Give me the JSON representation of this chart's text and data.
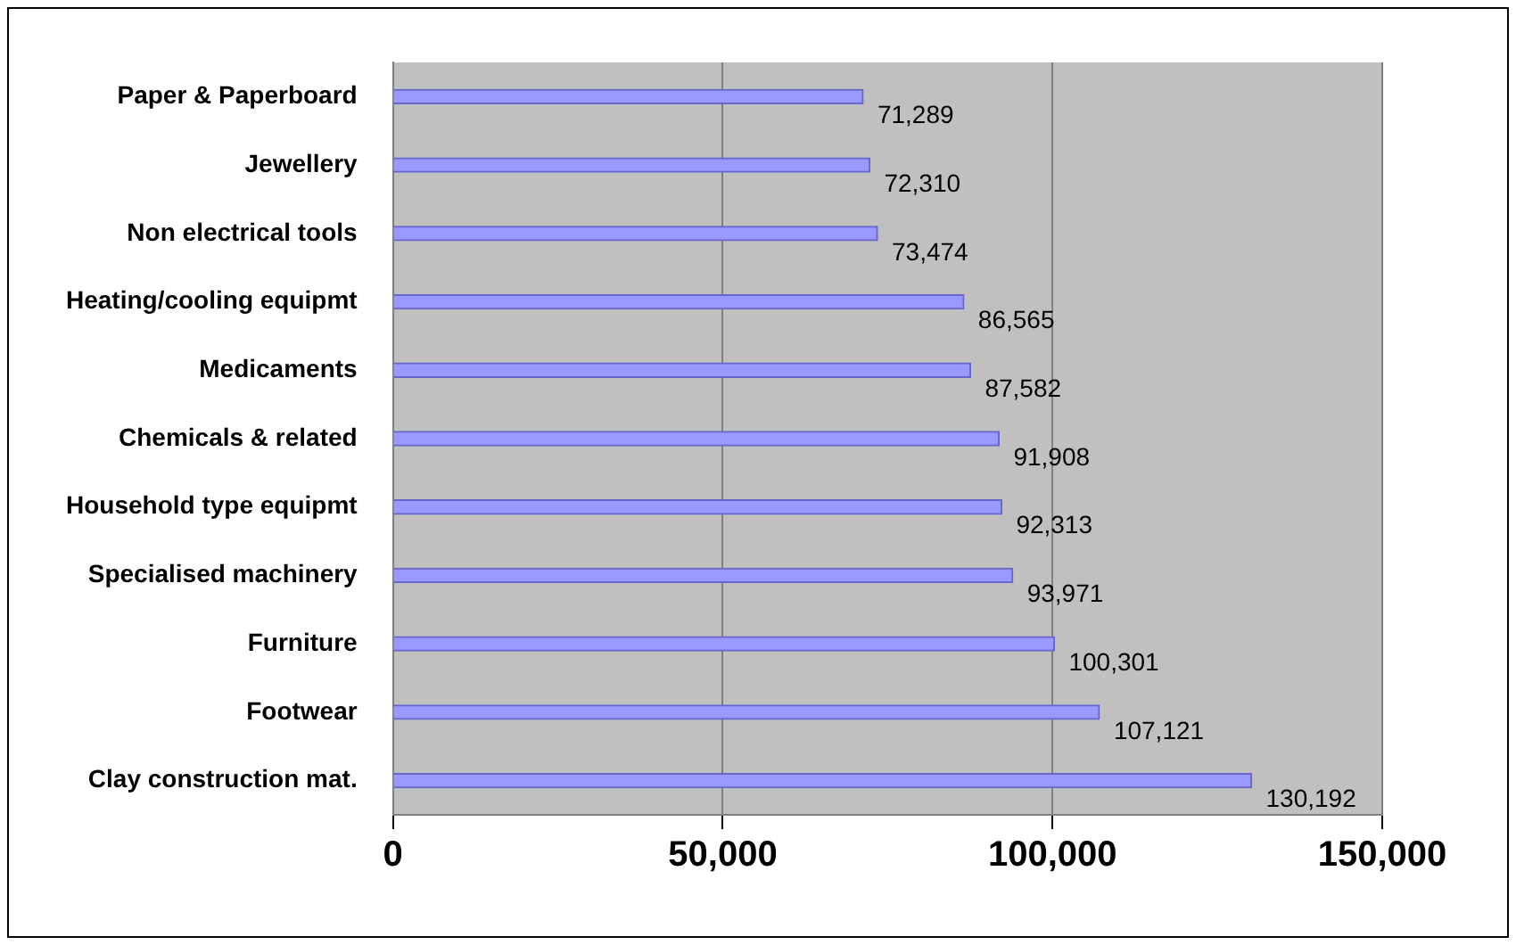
{
  "chart_data": {
    "type": "bar",
    "orientation": "horizontal",
    "categories": [
      "Paper & Paperboard",
      "Jewellery",
      "Non electrical tools",
      "Heating/cooling equipmt",
      "Medicaments",
      "Chemicals & related",
      "Household type equipmt",
      "Specialised machinery",
      "Furniture",
      "Footwear",
      "Clay construction mat."
    ],
    "values": [
      71289,
      72310,
      73474,
      86565,
      87582,
      91908,
      92313,
      93971,
      100301,
      107121,
      130192
    ],
    "color": "#9999ff",
    "xlim": [
      0,
      150000
    ],
    "xticks": [
      {
        "value": 0,
        "label": "0"
      },
      {
        "value": 50000,
        "label": "50,000"
      },
      {
        "value": 100000,
        "label": "100,000"
      },
      {
        "value": 150000,
        "label": "150,000"
      }
    ],
    "value_labels": [
      "71,289",
      "72,310",
      "73,474",
      "86,565",
      "87,582",
      "91,908",
      "92,313",
      "93,971",
      "100,301",
      "107,121",
      "130,192"
    ],
    "grid": "x",
    "legend": false
  }
}
